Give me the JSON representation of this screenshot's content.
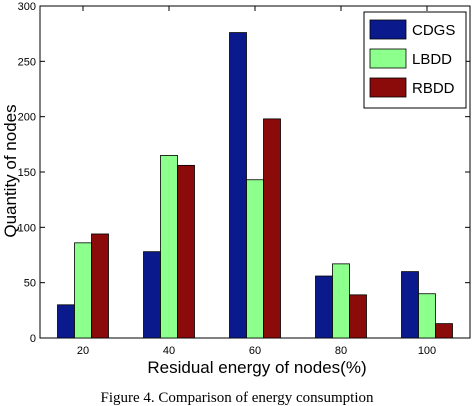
{
  "chart_data": {
    "type": "bar",
    "categories": [
      "20",
      "40",
      "60",
      "80",
      "100"
    ],
    "series": [
      {
        "name": "CDGS",
        "values": [
          30,
          78,
          276,
          56,
          60
        ],
        "color": "#0a1a8c"
      },
      {
        "name": "LBDD",
        "values": [
          86,
          165,
          143,
          67,
          40
        ],
        "color": "#8cff8c"
      },
      {
        "name": "RBDD",
        "values": [
          94,
          156,
          198,
          39,
          13
        ],
        "color": "#8b0a0a"
      }
    ],
    "title": "",
    "xlabel": "Residual energy of nodes(%)",
    "ylabel": "Quantity of nodes",
    "ylim": [
      0,
      300
    ],
    "yticks": [
      0,
      50,
      100,
      150,
      200,
      250,
      300
    ],
    "legend_position": "top-right",
    "grid": false
  },
  "caption": "Figure 4. Comparison of energy consumption"
}
